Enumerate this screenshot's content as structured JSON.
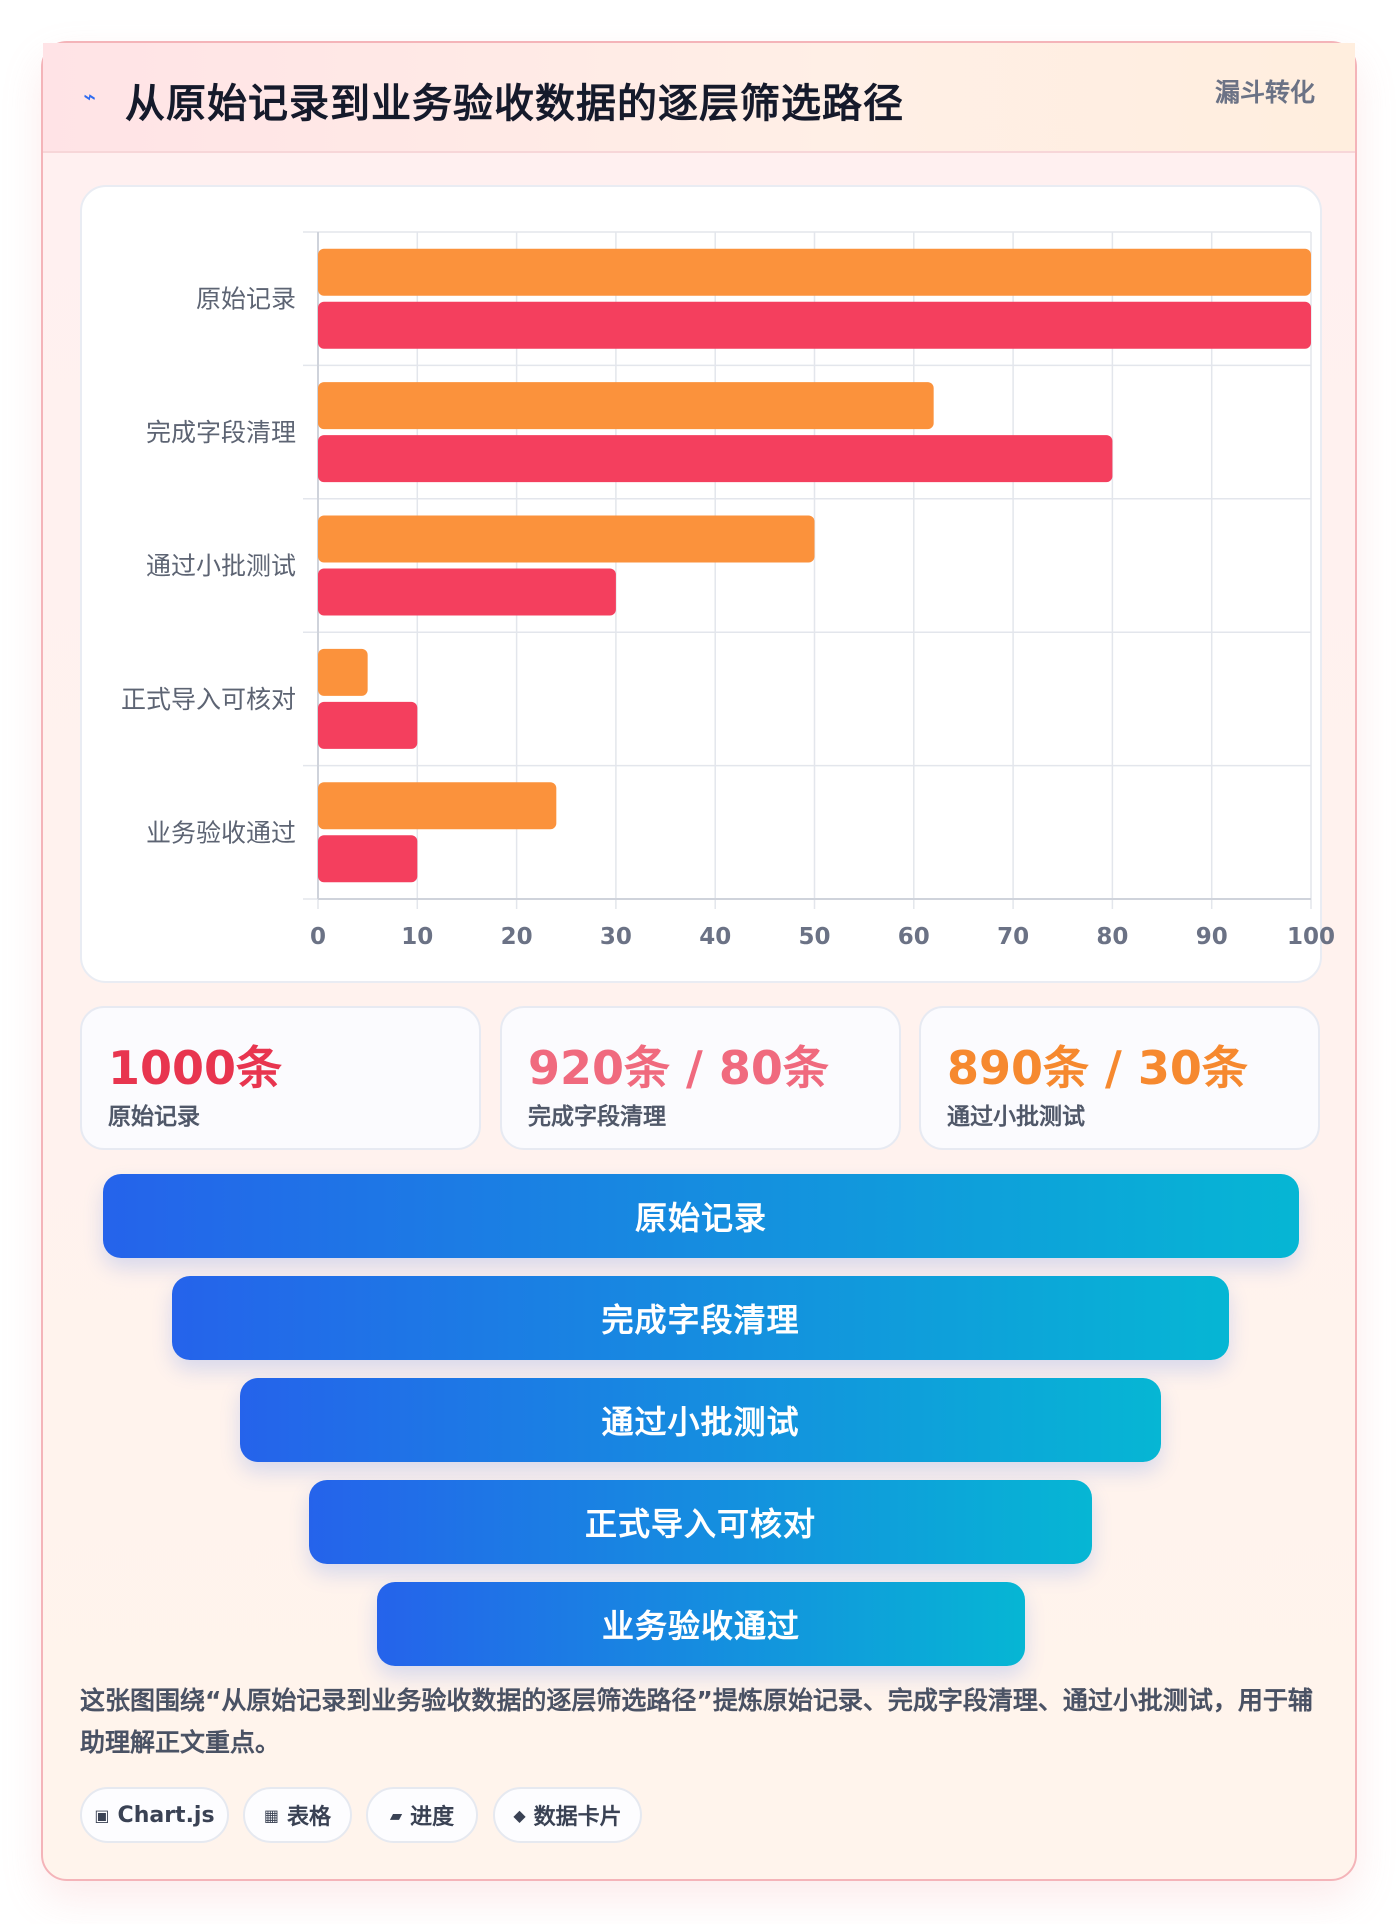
{
  "header": {
    "icon": "bolt-icon",
    "title": "从原始记录到业务验收数据的逐层筛选路径",
    "badge": "漏斗转化"
  },
  "chart_data": {
    "type": "bar",
    "orientation": "horizontal",
    "categories": [
      "原始记录",
      "完成字段清理",
      "通过小批测试",
      "正式导入可核对",
      "业务验收通过"
    ],
    "series": [
      {
        "values": [
          100,
          62,
          50,
          5,
          24
        ],
        "color": "#fb923c"
      },
      {
        "values": [
          100,
          80,
          30,
          10,
          10
        ],
        "color": "#f43f5e"
      }
    ],
    "xlim": [
      0,
      100
    ],
    "xticks": [
      0,
      10,
      20,
      30,
      40,
      50,
      60,
      70,
      80,
      90,
      100
    ],
    "grid": true,
    "legend": "none"
  },
  "stats": [
    {
      "value": "1000条",
      "label": "原始记录",
      "color": "#e8354f"
    },
    {
      "value": "920条 / 80条",
      "label": "完成字段清理",
      "color": "#f06a7e"
    },
    {
      "value": "890条 / 30条",
      "label": "通过小批测试",
      "color": "#f6892f"
    }
  ],
  "funnel": [
    {
      "label": "原始记录"
    },
    {
      "label": "完成字段清理"
    },
    {
      "label": "通过小批测试"
    },
    {
      "label": "正式导入可核对"
    },
    {
      "label": "业务验收通过"
    }
  ],
  "description": "这张图围绕“从原始记录到业务验收数据的逐层筛选路径”提炼原始记录、完成字段清理、通过小批测试，用于辅助理解正文重点。",
  "tags": [
    {
      "icon": "▣",
      "label": "Chart.js"
    },
    {
      "icon": "▦",
      "label": "表格"
    },
    {
      "icon": "▰",
      "label": "进度"
    },
    {
      "icon": "◆",
      "label": "数据卡片"
    }
  ]
}
